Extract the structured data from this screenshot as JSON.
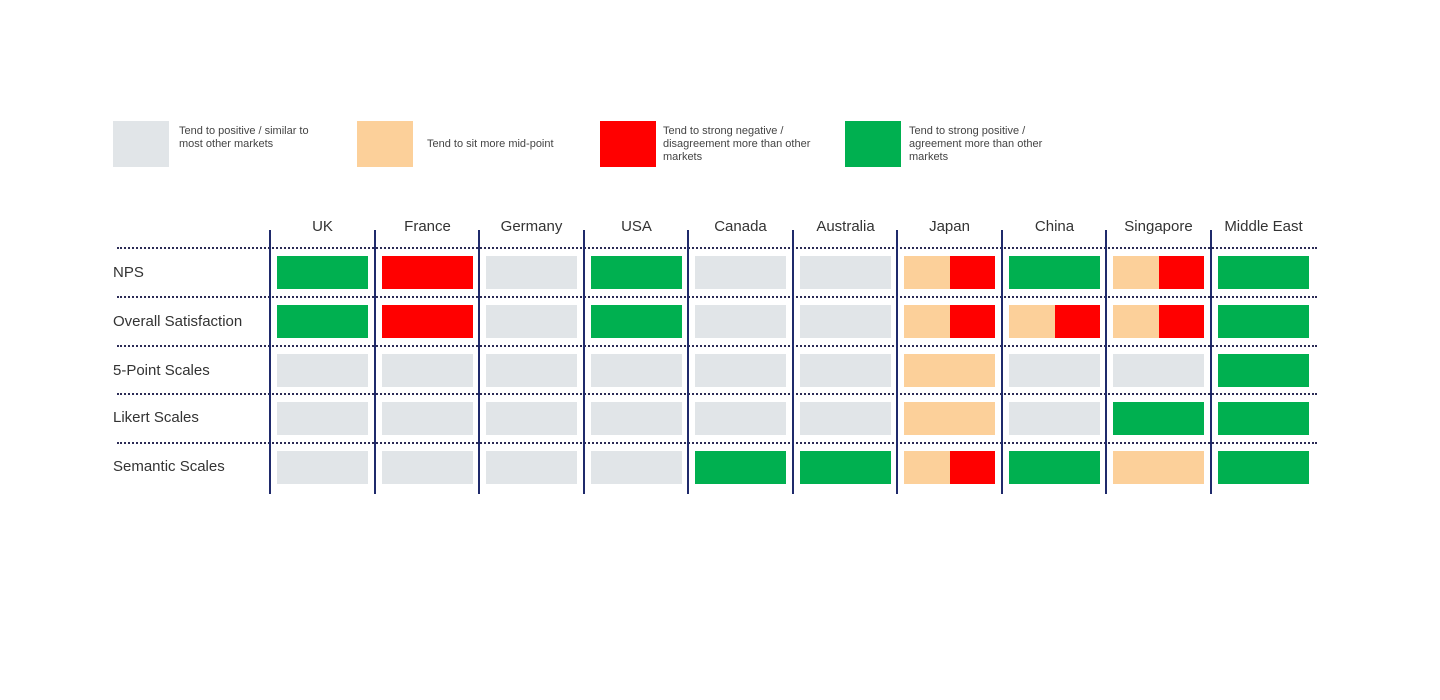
{
  "colors": {
    "similar": "#e1e5e8",
    "mid": "#fcd09a",
    "negative": "#ff0000",
    "positive": "#00b050"
  },
  "legend": [
    {
      "key": "similar",
      "label": "Tend to positive / similar to\nmost other markets"
    },
    {
      "key": "mid",
      "label": "Tend to sit more mid-point"
    },
    {
      "key": "negative",
      "label": "Tend to strong negative /\ndisagreement more than other\nmarkets"
    },
    {
      "key": "positive",
      "label": "Tend to strong positive /\nagreement more than other\nmarkets"
    }
  ],
  "chart_data": {
    "type": "heatmap",
    "columns": [
      "UK",
      "France",
      "Germany",
      "USA",
      "Canada",
      "Australia",
      "Japan",
      "China",
      "Singapore",
      "Middle East"
    ],
    "rows": [
      {
        "label": "NPS",
        "cells": [
          [
            "positive"
          ],
          [
            "negative"
          ],
          [
            "similar"
          ],
          [
            "positive"
          ],
          [
            "similar"
          ],
          [
            "similar"
          ],
          [
            "mid",
            "negative"
          ],
          [
            "positive"
          ],
          [
            "mid",
            "negative"
          ],
          [
            "positive"
          ]
        ]
      },
      {
        "label": "Overall Satisfaction",
        "cells": [
          [
            "positive"
          ],
          [
            "negative"
          ],
          [
            "similar"
          ],
          [
            "positive"
          ],
          [
            "similar"
          ],
          [
            "similar"
          ],
          [
            "mid",
            "negative"
          ],
          [
            "mid",
            "negative"
          ],
          [
            "mid",
            "negative"
          ],
          [
            "positive"
          ]
        ]
      },
      {
        "label": "5-Point Scales",
        "cells": [
          [
            "similar"
          ],
          [
            "similar"
          ],
          [
            "similar"
          ],
          [
            "similar"
          ],
          [
            "similar"
          ],
          [
            "similar"
          ],
          [
            "mid"
          ],
          [
            "similar"
          ],
          [
            "similar"
          ],
          [
            "positive"
          ]
        ]
      },
      {
        "label": "Likert Scales",
        "cells": [
          [
            "similar"
          ],
          [
            "similar"
          ],
          [
            "similar"
          ],
          [
            "similar"
          ],
          [
            "similar"
          ],
          [
            "similar"
          ],
          [
            "mid"
          ],
          [
            "similar"
          ],
          [
            "positive"
          ],
          [
            "positive"
          ]
        ]
      },
      {
        "label": "Semantic Scales",
        "cells": [
          [
            "similar"
          ],
          [
            "similar"
          ],
          [
            "similar"
          ],
          [
            "similar"
          ],
          [
            "positive"
          ],
          [
            "positive"
          ],
          [
            "mid",
            "negative"
          ],
          [
            "positive"
          ],
          [
            "mid"
          ],
          [
            "positive"
          ]
        ]
      }
    ]
  }
}
